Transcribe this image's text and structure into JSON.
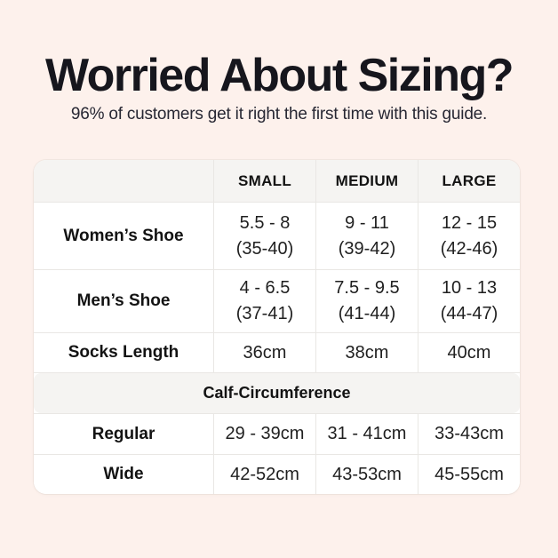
{
  "page": {
    "background_color": "#fdf1ec",
    "title_color": "#16161d",
    "subtitle_color": "#272733",
    "table_background": "#ffffff",
    "band_background": "#f5f4f2",
    "border_color": "#e9e7e4",
    "cell_text_color": "#1f1f1f"
  },
  "chart_data": {
    "type": "table",
    "title": "Worried About Sizing?",
    "subtitle": "96% of customers get it right the first time with this guide.",
    "columns": [
      "",
      "SMALL",
      "MEDIUM",
      "LARGE"
    ],
    "rows": [
      [
        "Women’s Shoe",
        "5.5 - 8\n(35-40)",
        "9 - 11\n(39-42)",
        "12 - 15\n(42-46)"
      ],
      [
        "Men’s Shoe",
        "4 - 6.5\n(37-41)",
        "7.5 - 9.5\n(41-44)",
        "10 - 13\n(44-47)"
      ],
      [
        "Socks Length",
        "36cm",
        "38cm",
        "40cm"
      ],
      [
        "Calf-Circumference",
        "",
        "",
        ""
      ],
      [
        "Regular",
        "29 - 39cm",
        "31 - 41cm",
        "33-43cm"
      ],
      [
        "Wide",
        "42-52cm",
        "43-53cm",
        "45-55cm"
      ]
    ],
    "section_header_row_index": 3,
    "layout": {
      "grid": "on",
      "header_background": "#f5f4f2"
    }
  }
}
